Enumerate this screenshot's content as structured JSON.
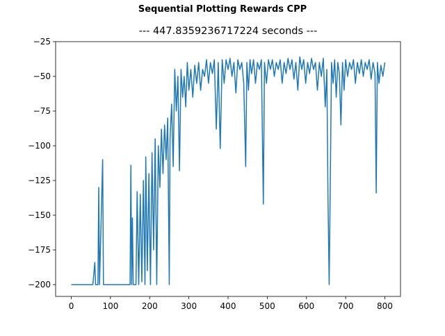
{
  "chart_data": {
    "type": "line",
    "suptitle": "Sequential Plotting Rewards CPP",
    "title": "--- 447.8359236717224 seconds ---",
    "color": "#1f77b4",
    "x": [
      0,
      55,
      60,
      62,
      68,
      70,
      72,
      80,
      82,
      150,
      152,
      154,
      156,
      158,
      165,
      168,
      172,
      176,
      180,
      184,
      188,
      190,
      194,
      198,
      202,
      206,
      210,
      214,
      218,
      222,
      226,
      230,
      234,
      238,
      242,
      246,
      250,
      252,
      256,
      260,
      264,
      268,
      272,
      276,
      280,
      284,
      288,
      292,
      296,
      300,
      305,
      310,
      315,
      320,
      325,
      330,
      335,
      340,
      345,
      350,
      355,
      360,
      365,
      370,
      375,
      380,
      385,
      390,
      395,
      400,
      405,
      410,
      415,
      420,
      425,
      430,
      435,
      440,
      445,
      448,
      452,
      456,
      460,
      465,
      470,
      475,
      480,
      485,
      490,
      493,
      498,
      503,
      508,
      513,
      518,
      523,
      528,
      533,
      538,
      543,
      548,
      553,
      558,
      563,
      568,
      573,
      578,
      583,
      588,
      593,
      598,
      603,
      608,
      613,
      618,
      623,
      628,
      633,
      638,
      643,
      648,
      652,
      655,
      658,
      661,
      664,
      668,
      672,
      676,
      680,
      684,
      688,
      692,
      696,
      700,
      705,
      710,
      715,
      720,
      725,
      730,
      735,
      740,
      745,
      750,
      755,
      760,
      765,
      770,
      775,
      778,
      781,
      785,
      790,
      795,
      800
    ],
    "values": [
      -200,
      -200,
      -184,
      -200,
      -200,
      -130,
      -200,
      -110,
      -200,
      -200,
      -114,
      -200,
      -152,
      -200,
      -200,
      -133,
      -200,
      -135,
      -198,
      -125,
      -200,
      -108,
      -190,
      -120,
      -200,
      -105,
      -175,
      -95,
      -200,
      -100,
      -130,
      -88,
      -120,
      -85,
      -110,
      -80,
      -200,
      -95,
      -70,
      -115,
      -45,
      -75,
      -50,
      -118,
      -45,
      -65,
      -50,
      -72,
      -40,
      -60,
      -45,
      -65,
      -42,
      -55,
      -40,
      -60,
      -45,
      -50,
      -38,
      -55,
      -40,
      -48,
      -38,
      -88,
      -40,
      -102,
      -38,
      -55,
      -38,
      -45,
      -37,
      -50,
      -40,
      -62,
      -38,
      -45,
      -40,
      -55,
      -115,
      -40,
      -60,
      -38,
      -48,
      -38,
      -55,
      -40,
      -45,
      -38,
      -142,
      -40,
      -55,
      -38,
      -45,
      -38,
      -50,
      -40,
      -45,
      -38,
      -55,
      -40,
      -48,
      -37,
      -45,
      -38,
      -52,
      -40,
      -60,
      -36,
      -45,
      -38,
      -55,
      -40,
      -48,
      -37,
      -45,
      -40,
      -60,
      -40,
      -50,
      -37,
      -72,
      -45,
      -138,
      -200,
      -122,
      -40,
      -55,
      -38,
      -65,
      -40,
      -48,
      -85,
      -40,
      -60,
      -38,
      -50,
      -40,
      -45,
      -38,
      -55,
      -40,
      -48,
      -38,
      -50,
      -40,
      -45,
      -38,
      -52,
      -40,
      -48,
      -134,
      -40,
      -55,
      -42,
      -50,
      -40
    ],
    "xlim": [
      -40,
      840
    ],
    "ylim": [
      -208.5,
      -25
    ],
    "xticks": [
      0,
      100,
      200,
      300,
      400,
      500,
      600,
      700,
      800
    ],
    "yticks": [
      {
        "value": -200,
        "label": "−200"
      },
      {
        "value": -175,
        "label": "−175"
      },
      {
        "value": -150,
        "label": "−150"
      },
      {
        "value": -125,
        "label": "−125"
      },
      {
        "value": -100,
        "label": "−100"
      },
      {
        "value": -75,
        "label": "−75"
      },
      {
        "value": -50,
        "label": "−50"
      },
      {
        "value": -25,
        "label": "−25"
      }
    ]
  }
}
